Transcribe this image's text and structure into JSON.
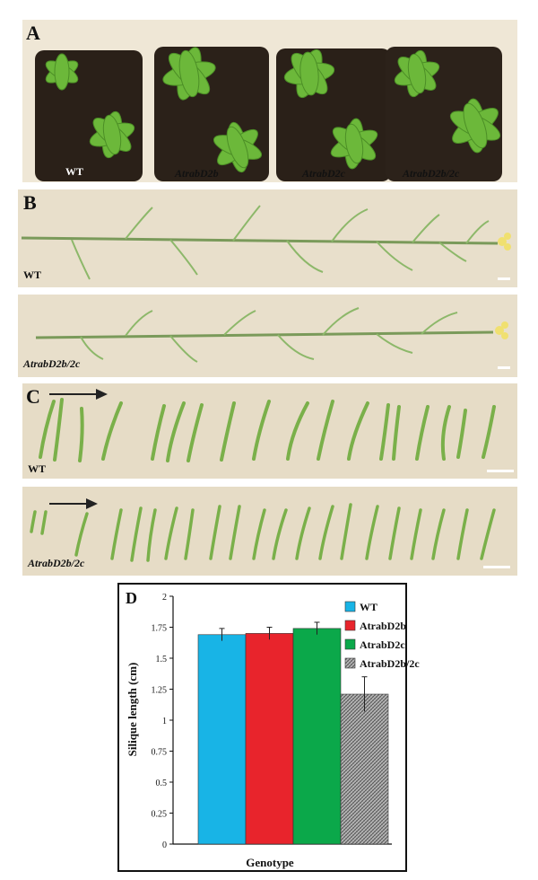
{
  "panel_a": {
    "letter": "A",
    "labels": [
      "WT",
      "AtrabD2b",
      "AtrabD2c",
      "AtrabD2b/2c"
    ]
  },
  "panel_b": {
    "letter": "B",
    "rows": [
      {
        "label": "WT"
      },
      {
        "label": "AtrabD2b/2c"
      }
    ]
  },
  "panel_c": {
    "letter": "C",
    "rows": [
      {
        "label": "WT"
      },
      {
        "label": "AtrabD2b/2c"
      }
    ]
  },
  "chart_data": {
    "panel_letter": "D",
    "type": "bar",
    "title": "",
    "xlabel": "Genotype",
    "ylabel": "Silique length (cm)",
    "ylim": [
      0,
      2
    ],
    "yticks": [
      "0",
      "0.25",
      "0.5",
      "0.75",
      "1",
      "1.25",
      "1.5",
      "1.75",
      "2"
    ],
    "ytick_values": [
      0,
      0.25,
      0.5,
      0.75,
      1,
      1.25,
      1.5,
      1.75,
      2
    ],
    "legend_position": "top-right",
    "series": [
      {
        "name": "WT",
        "value": 1.69,
        "error": 0.05,
        "color": "#18b4e6"
      },
      {
        "name": "AtrabD2b",
        "value": 1.7,
        "error": 0.05,
        "color": "#e8242c"
      },
      {
        "name": "AtrabD2c",
        "value": 1.74,
        "error": 0.05,
        "color": "#0ba84a"
      },
      {
        "name": "AtrabD2b/2c",
        "value": 1.21,
        "error": 0.14,
        "color": "#9a9a9a",
        "pattern": "hatched"
      }
    ]
  }
}
